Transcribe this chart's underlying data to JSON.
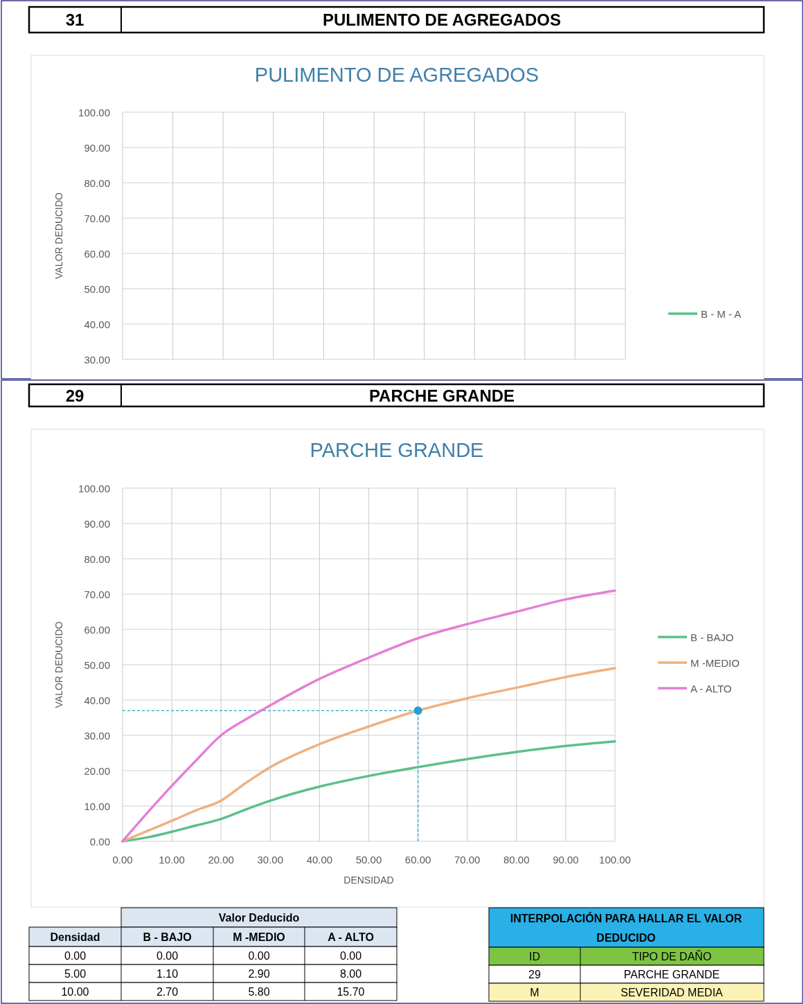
{
  "chart_data": [
    {
      "type": "line",
      "title": "PULIMENTO DE AGREGADOS",
      "ylabel": "VALOR DEDUCIDO",
      "annotations": [
        "31",
        "PULIMENTO DE AGREGADOS"
      ],
      "categories": [
        null,
        null,
        null,
        null,
        null,
        null,
        null,
        null,
        null,
        null
      ],
      "ylim": [
        30,
        100
      ],
      "yticks": [
        {
          "value": 30,
          "label": "30.00"
        },
        {
          "value": 40,
          "label": "40.00"
        },
        {
          "value": 50,
          "label": "50.00"
        },
        {
          "value": 60,
          "label": "60.00"
        },
        {
          "value": 70,
          "label": "70.00"
        },
        {
          "value": 80,
          "label": "80.00"
        },
        {
          "value": 90,
          "label": "90.00"
        },
        {
          "value": 100,
          "label": "100.00"
        }
      ],
      "grid": true,
      "legend": "right",
      "series": [
        {
          "name": "B - M - A",
          "color": "#5cbf8a",
          "values": [
            null,
            null,
            null,
            null,
            null,
            null,
            null,
            null,
            null,
            null
          ]
        }
      ]
    },
    {
      "type": "line",
      "title": "PARCHE  GRANDE",
      "xlabel": "DENSIDAD",
      "ylabel": "VALOR DEDUCIDO",
      "annotations": [
        "29",
        "PARCHE GRANDE",
        "Valor Deducido",
        "Densidad",
        "INTERPOLACIÓN PARA HALLAR EL VALOR DEDUCIDO",
        "ID",
        "TIPO DE DAÑO",
        "29",
        "PARCHE GRANDE",
        "M",
        "SEVERIDAD MEDIA",
        "0.00",
        "0.00",
        "0.00",
        "0.00",
        "5.00",
        "1.10",
        "2.90",
        "8.00",
        "10.00",
        "2.70",
        "5.80",
        "15.70"
      ],
      "x": [
        0,
        5,
        10,
        15,
        20,
        25,
        30,
        40,
        50,
        60,
        70,
        80,
        90,
        100
      ],
      "xlim": [
        0,
        100
      ],
      "xticks": [
        {
          "value": 0,
          "label": "0.00"
        },
        {
          "value": 10,
          "label": "10.00"
        },
        {
          "value": 20,
          "label": "20.00"
        },
        {
          "value": 30,
          "label": "30.00"
        },
        {
          "value": 40,
          "label": "40.00"
        },
        {
          "value": 50,
          "label": "50.00"
        },
        {
          "value": 60,
          "label": "60.00"
        },
        {
          "value": 70,
          "label": "70.00"
        },
        {
          "value": 80,
          "label": "80.00"
        },
        {
          "value": 90,
          "label": "90.00"
        },
        {
          "value": 100,
          "label": "100.00"
        }
      ],
      "ylim": [
        0,
        100
      ],
      "yticks": [
        {
          "value": 0,
          "label": "0.00"
        },
        {
          "value": 10,
          "label": "10.00"
        },
        {
          "value": 20,
          "label": "20.00"
        },
        {
          "value": 30,
          "label": "30.00"
        },
        {
          "value": 40,
          "label": "40.00"
        },
        {
          "value": 50,
          "label": "50.00"
        },
        {
          "value": 60,
          "label": "60.00"
        },
        {
          "value": 70,
          "label": "70.00"
        },
        {
          "value": 80,
          "label": "80.00"
        },
        {
          "value": 90,
          "label": "90.00"
        },
        {
          "value": 100,
          "label": "100.00"
        }
      ],
      "grid": true,
      "legend": "right",
      "ref_lines": [
        {
          "axis": "x",
          "value": 60,
          "color": "#1fa2cf",
          "line_style": "dashed"
        },
        {
          "axis": "y",
          "value": 37,
          "color": "#1fa2cf",
          "line_style": "dashed"
        }
      ],
      "series": [
        {
          "name": "B - BAJO",
          "color": "#5cbf8a",
          "values": [
            0,
            1.1,
            2.7,
            4.5,
            6.3,
            9,
            11.5,
            15.5,
            18.5,
            21,
            23.3,
            25.3,
            27,
            28.3
          ]
        },
        {
          "name": "M -MEDIO",
          "color": "#f0b07e",
          "values": [
            0,
            2.9,
            5.8,
            8.8,
            11.5,
            16.5,
            21,
            27.5,
            32.5,
            37,
            40.5,
            43.5,
            46.5,
            49
          ]
        },
        {
          "name": "A - ALTO",
          "color": "#e47fd6",
          "values": [
            0,
            8,
            15.7,
            23,
            30,
            34.5,
            38.5,
            46,
            52,
            57.5,
            61.5,
            65,
            68.5,
            71
          ]
        },
        {
          "type": "scatter",
          "color": "#1fa2cf",
          "x": [
            60
          ],
          "values": [
            37
          ]
        }
      ]
    }
  ]
}
